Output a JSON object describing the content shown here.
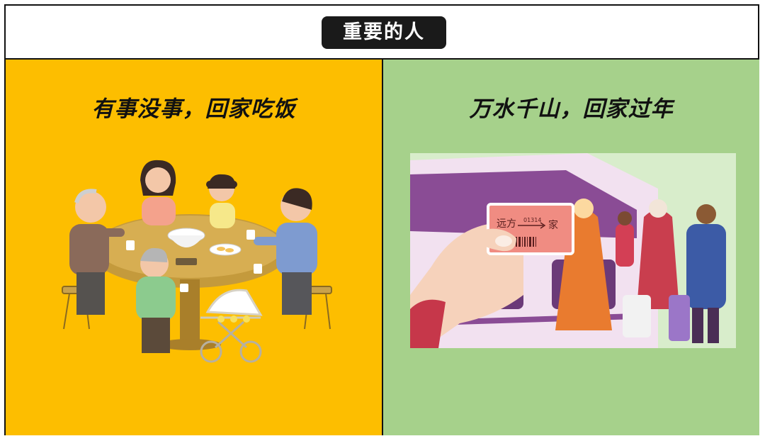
{
  "header": {
    "title": "重要的人"
  },
  "left_panel": {
    "caption": "有事没事，回家吃饭",
    "illustration": "family-dinner-table-illustration",
    "background": "#FDBE00"
  },
  "right_panel": {
    "caption": "万水千山，回家过年",
    "illustration": "train-ticket-travel-home-illustration",
    "background": "#A6D18B",
    "ticket": {
      "from": "远方",
      "number": "01314",
      "to": "家"
    }
  }
}
